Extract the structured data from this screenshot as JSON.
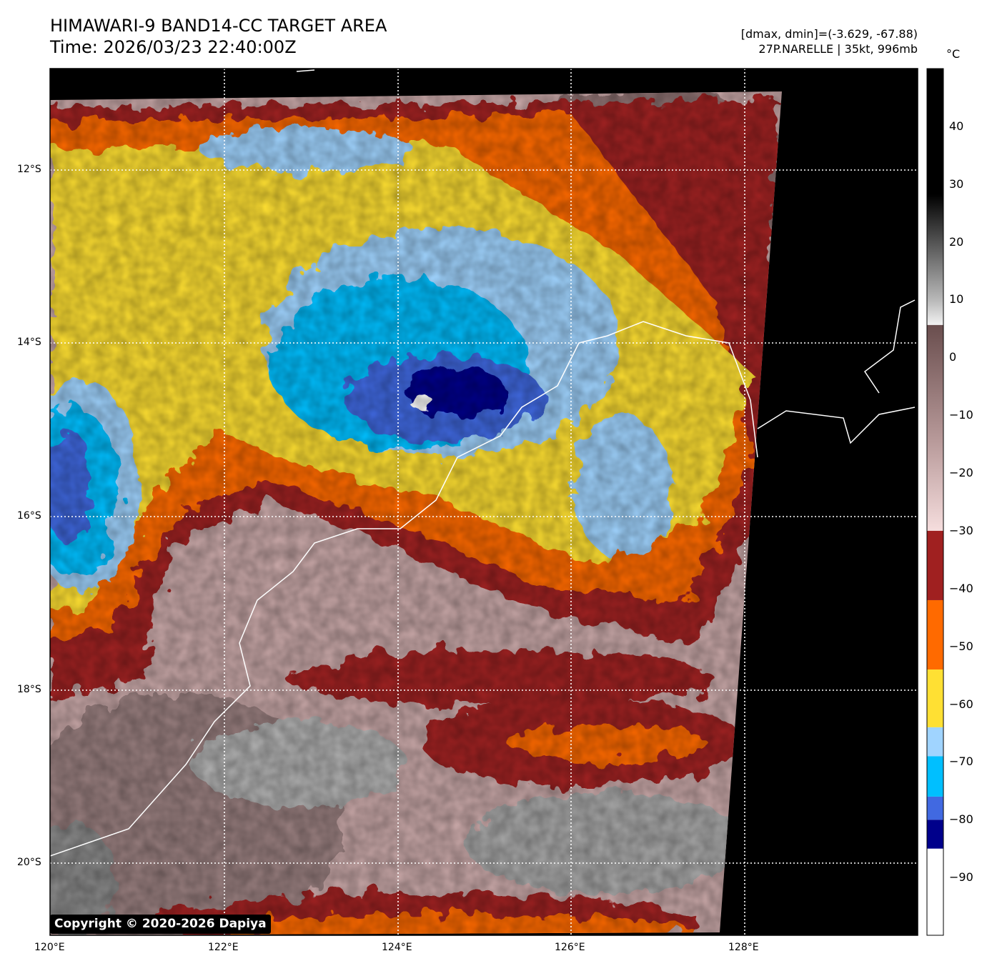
{
  "header": {
    "title_line1": "HIMAWARI-9 BAND14-CC TARGET AREA",
    "title_line2": "Time: 2026/03/23 22:40:00Z",
    "stats": "[dmax, dmin]=(-3.629, -67.88)",
    "storm": "27P.NARELLE | 35kt, 996mb"
  },
  "map": {
    "lon_range": [
      120,
      130
    ],
    "lat_range": [
      -10.83,
      -20.83
    ],
    "lon_ticks": [
      "120°E",
      "122°E",
      "124°E",
      "126°E",
      "128°E"
    ],
    "lat_ticks": [
      "12°S",
      "14°S",
      "16°S",
      "18°S",
      "20°S"
    ],
    "copyright": "Copyright © 2020-2026 Dapiya"
  },
  "colorbar": {
    "unit": "°C",
    "range": [
      -100,
      50
    ],
    "ticks": [
      "40",
      "30",
      "20",
      "10",
      "0",
      "−10",
      "−20",
      "−30",
      "−40",
      "−50",
      "−60",
      "−70",
      "−80",
      "−90"
    ],
    "tick_values": [
      40,
      30,
      20,
      10,
      0,
      -10,
      -20,
      -30,
      -40,
      -50,
      -60,
      -70,
      -80,
      -90
    ],
    "segments": [
      {
        "from": -100,
        "to": -85,
        "color": "#ffffff"
      },
      {
        "from": -85,
        "to": -80,
        "color": "#00008b"
      },
      {
        "from": -80,
        "to": -76,
        "color": "#4169e1"
      },
      {
        "from": -76,
        "to": -69,
        "color": "#00bfff"
      },
      {
        "from": -69,
        "to": -64,
        "color": "#a0d4ff"
      },
      {
        "from": -64,
        "to": -54,
        "color": "#ffe033"
      },
      {
        "from": -54,
        "to": -42,
        "color": "#ff6a00"
      },
      {
        "from": -42,
        "to": -30,
        "color": "#a02020"
      }
    ]
  }
}
